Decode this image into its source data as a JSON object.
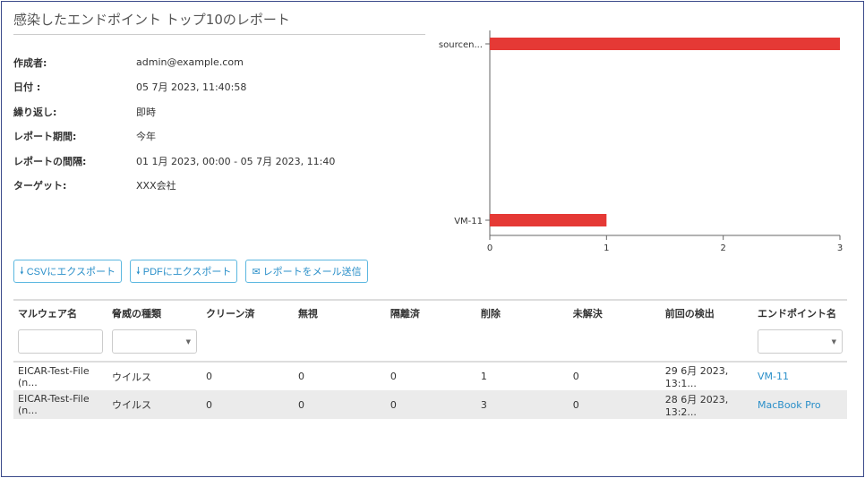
{
  "title": "感染したエンドポイント トップ10のレポート",
  "info": [
    {
      "label": "作成者:",
      "value": "admin@example.com"
    },
    {
      "label": "日付 :",
      "value": "05 7月 2023, 11:40:58"
    },
    {
      "label": "繰り返し:",
      "value": "即時"
    },
    {
      "label": "レポート期間:",
      "value": "今年"
    },
    {
      "label": "レポートの間隔:",
      "value": "01 1月 2023, 00:00 - 05 7月 2023, 11:40"
    },
    {
      "label": "ターゲット:",
      "value": "XXX会社"
    }
  ],
  "buttons": {
    "csv": "CSVにエクスポート",
    "pdf": "PDFにエクスポート",
    "mail": "レポートをメール送信"
  },
  "table": {
    "headers": [
      "マルウェア名",
      "脅威の種類",
      "クリーン済",
      "無視",
      "隔離済",
      "削除",
      "未解決",
      "前回の検出",
      "エンドポイント名"
    ],
    "rows": [
      [
        "EICAR-Test-File (n...",
        "ウイルス",
        "0",
        "0",
        "0",
        "1",
        "0",
        "29 6月 2023, 13:1...",
        "VM-11"
      ],
      [
        "EICAR-Test-File (n...",
        "ウイルス",
        "0",
        "0",
        "0",
        "3",
        "0",
        "28 6月 2023, 13:2...",
        "MacBook Pro"
      ]
    ]
  },
  "chart_data": {
    "type": "bar",
    "orientation": "horizontal",
    "categories": [
      "sourcen...",
      "VM-11"
    ],
    "values": [
      3,
      1
    ],
    "xlim": [
      0,
      3
    ],
    "xticks": [
      "0",
      "1",
      "2",
      "3"
    ],
    "color": "#e53935",
    "grid": false
  }
}
